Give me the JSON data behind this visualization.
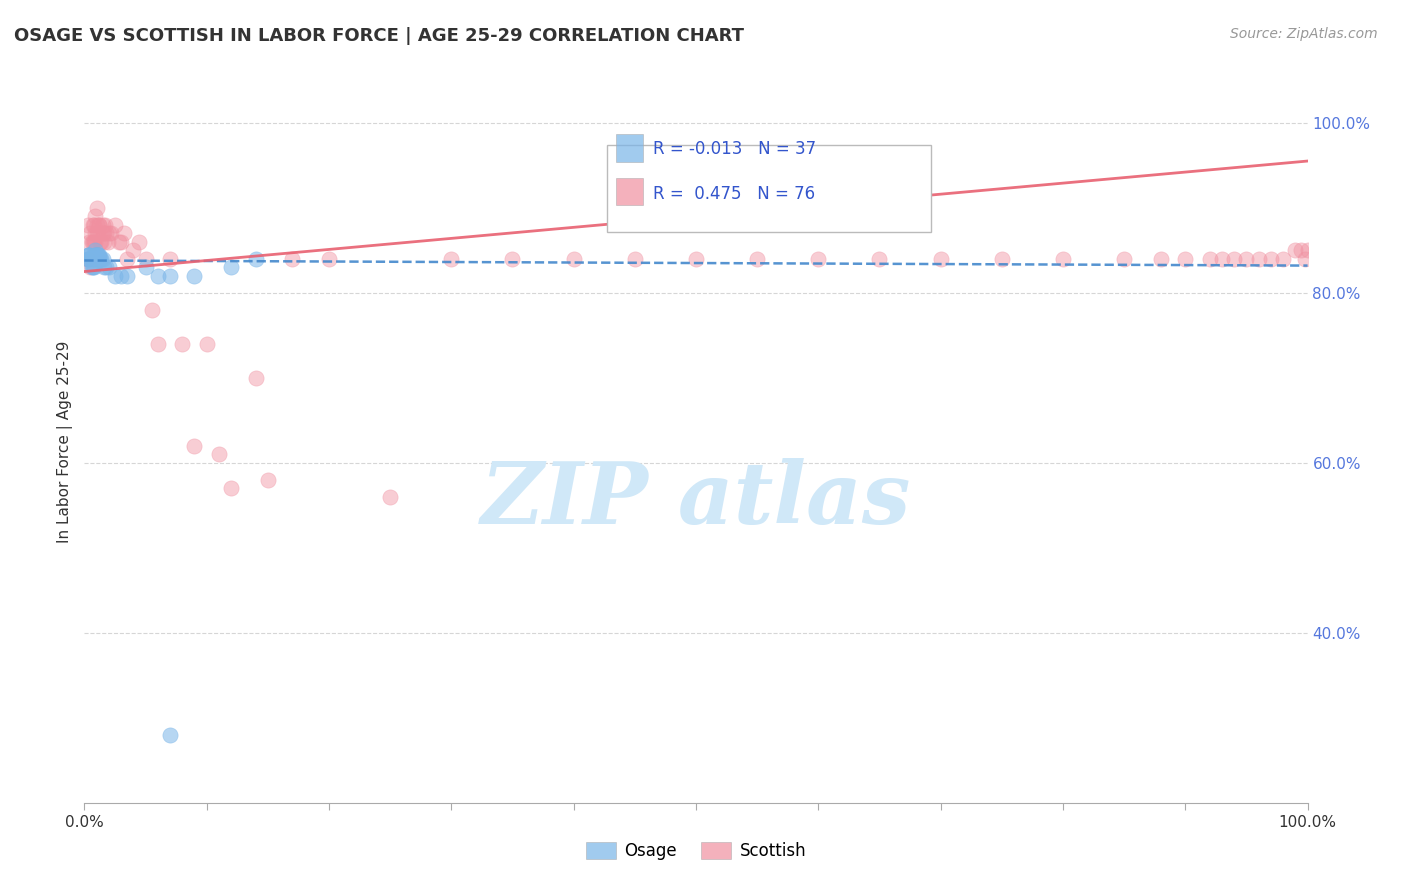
{
  "title": "OSAGE VS SCOTTISH IN LABOR FORCE | AGE 25-29 CORRELATION CHART",
  "source_text": "Source: ZipAtlas.com",
  "ylabel": "In Labor Force | Age 25-29",
  "xlim": [
    0.0,
    1.0
  ],
  "ylim": [
    0.2,
    1.05
  ],
  "osage_R": -0.013,
  "osage_N": 37,
  "scottish_R": 0.475,
  "scottish_N": 76,
  "osage_color": "#7ab5e8",
  "scottish_color": "#f090a0",
  "osage_line_color": "#4488cc",
  "scottish_line_color": "#e86070",
  "legend_text_color": "#3355cc",
  "background_color": "#ffffff",
  "grid_color": "#cccccc",
  "watermark_color": "#d0e8f8",
  "osage_x": [
    0.003,
    0.003,
    0.003,
    0.003,
    0.004,
    0.005,
    0.006,
    0.007,
    0.007,
    0.008,
    0.008,
    0.009,
    0.009,
    0.009,
    0.009,
    0.01,
    0.01,
    0.011,
    0.011,
    0.012,
    0.012,
    0.013,
    0.014,
    0.015,
    0.016,
    0.018,
    0.02,
    0.025,
    0.03,
    0.035,
    0.05,
    0.06,
    0.07,
    0.09,
    0.12,
    0.14,
    0.07
  ],
  "osage_y": [
    0.84,
    0.84,
    0.845,
    0.845,
    0.845,
    0.84,
    0.83,
    0.83,
    0.84,
    0.83,
    0.84,
    0.845,
    0.845,
    0.845,
    0.85,
    0.845,
    0.845,
    0.845,
    0.845,
    0.845,
    0.84,
    0.84,
    0.84,
    0.84,
    0.83,
    0.83,
    0.83,
    0.82,
    0.82,
    0.82,
    0.83,
    0.82,
    0.82,
    0.82,
    0.83,
    0.84,
    0.28
  ],
  "scottish_x": [
    0.003,
    0.003,
    0.004,
    0.005,
    0.005,
    0.006,
    0.007,
    0.007,
    0.008,
    0.008,
    0.009,
    0.009,
    0.009,
    0.01,
    0.01,
    0.01,
    0.011,
    0.012,
    0.012,
    0.013,
    0.014,
    0.015,
    0.015,
    0.016,
    0.016,
    0.017,
    0.018,
    0.019,
    0.02,
    0.022,
    0.025,
    0.028,
    0.03,
    0.032,
    0.035,
    0.04,
    0.045,
    0.05,
    0.055,
    0.06,
    0.07,
    0.08,
    0.09,
    0.1,
    0.11,
    0.12,
    0.14,
    0.15,
    0.17,
    0.2,
    0.25,
    0.3,
    0.35,
    0.4,
    0.45,
    0.5,
    0.55,
    0.6,
    0.65,
    0.7,
    0.75,
    0.8,
    0.85,
    0.88,
    0.9,
    0.92,
    0.93,
    0.94,
    0.95,
    0.96,
    0.97,
    0.98,
    0.99,
    0.995,
    0.998,
    1.0
  ],
  "scottish_y": [
    0.84,
    0.88,
    0.86,
    0.87,
    0.83,
    0.86,
    0.86,
    0.88,
    0.86,
    0.88,
    0.86,
    0.87,
    0.89,
    0.87,
    0.88,
    0.9,
    0.87,
    0.88,
    0.88,
    0.86,
    0.86,
    0.87,
    0.88,
    0.87,
    0.86,
    0.88,
    0.87,
    0.86,
    0.87,
    0.87,
    0.88,
    0.86,
    0.86,
    0.87,
    0.84,
    0.85,
    0.86,
    0.84,
    0.78,
    0.74,
    0.84,
    0.74,
    0.62,
    0.74,
    0.61,
    0.57,
    0.7,
    0.58,
    0.84,
    0.84,
    0.56,
    0.84,
    0.84,
    0.84,
    0.84,
    0.84,
    0.84,
    0.84,
    0.84,
    0.84,
    0.84,
    0.84,
    0.84,
    0.84,
    0.84,
    0.84,
    0.84,
    0.84,
    0.84,
    0.84,
    0.84,
    0.84,
    0.85,
    0.85,
    0.84,
    0.85
  ],
  "osage_trendline_x": [
    0.0,
    1.0
  ],
  "osage_trendline_y": [
    0.838,
    0.832
  ],
  "scottish_trendline_x": [
    0.0,
    1.0
  ],
  "scottish_trendline_y": [
    0.825,
    0.955
  ]
}
